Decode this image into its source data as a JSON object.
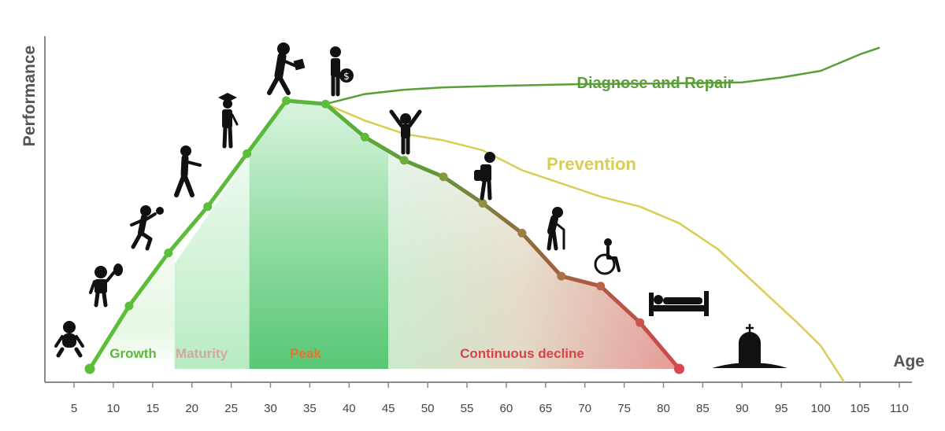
{
  "chart_data": {
    "type": "line",
    "title": "",
    "xlabel": "Age",
    "ylabel": "Performance",
    "xlim": [
      2,
      114
    ],
    "ylim": [
      0,
      100
    ],
    "x_ticks": [
      5,
      10,
      15,
      20,
      25,
      30,
      35,
      40,
      45,
      50,
      55,
      60,
      65,
      70,
      75,
      80,
      85,
      90,
      95,
      100,
      105,
      110
    ],
    "grid": false,
    "series": [
      {
        "name": "Performance",
        "markers": true,
        "color_start": "#5cbf3a",
        "color_end": "#d9454f",
        "x": [
          7,
          12,
          17,
          22,
          27,
          32,
          37,
          42,
          47,
          52,
          57,
          62,
          67,
          72,
          77,
          82
        ],
        "y": [
          0,
          19,
          35,
          49,
          65,
          81,
          80,
          70,
          63,
          58,
          50,
          41,
          28,
          25,
          14,
          0
        ]
      },
      {
        "name": "Diagnose and Repair",
        "color": "#5a9e38",
        "x": [
          37,
          42,
          47,
          52,
          60,
          70,
          80,
          90,
          95,
          100,
          105,
          107.5
        ],
        "y": [
          80,
          83,
          84.3,
          85,
          85.5,
          86,
          86.2,
          86.5,
          88,
          90,
          95,
          97
        ]
      },
      {
        "name": "Prevention",
        "color": "#d9cd55",
        "x": [
          37,
          42,
          47,
          52,
          57,
          62,
          67,
          72,
          77,
          82,
          87,
          92,
          97,
          100,
          103
        ],
        "y": [
          80,
          75,
          71,
          69,
          66,
          60,
          56,
          52,
          49,
          44,
          36,
          25,
          14,
          7,
          -4
        ]
      }
    ],
    "phases": [
      {
        "name": "Growth",
        "x_start": 7,
        "x_end": 17.8,
        "label_color": "#5cb83a",
        "fill": "#dff5dc"
      },
      {
        "name": "Maturity",
        "x_start": 17.8,
        "x_end": 27.3,
        "label_color": "#d0a8a0",
        "fill": "#bfecc6"
      },
      {
        "name": "Peak",
        "x_start": 27.3,
        "x_end": 45,
        "label_color": "#e0772e",
        "fill": "#5fcb7c"
      },
      {
        "name": "Continuous decline",
        "x_start": 45,
        "x_end": 82,
        "label_color": "#d6434a",
        "fill": "#cfecd2"
      }
    ],
    "annotations": [
      {
        "text": "Diagnose and Repair",
        "color": "#5a9e38"
      },
      {
        "text": "Prevention",
        "color": "#d9cd55"
      }
    ],
    "life_stage_icons": [
      "baby-icon",
      "toddler-balloon-icon",
      "child-running-icon",
      "child-walking-icon",
      "graduate-icon",
      "worker-briefcase-icon",
      "money-bag-person-icon",
      "arms-raised-person-icon",
      "person-backpack-icon",
      "elderly-cane-icon",
      "wheelchair-icon",
      "bed-icon",
      "grave-icon"
    ]
  }
}
